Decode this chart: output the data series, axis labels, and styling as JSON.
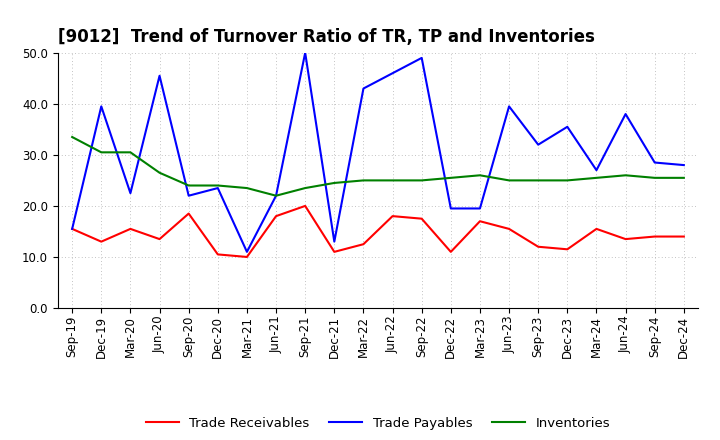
{
  "title": "[9012]  Trend of Turnover Ratio of TR, TP and Inventories",
  "ylim": [
    0.0,
    50.0
  ],
  "yticks": [
    0.0,
    10.0,
    20.0,
    30.0,
    40.0,
    50.0
  ],
  "labels": [
    "Sep-19",
    "Dec-19",
    "Mar-20",
    "Jun-20",
    "Sep-20",
    "Dec-20",
    "Mar-21",
    "Jun-21",
    "Sep-21",
    "Dec-21",
    "Mar-22",
    "Jun-22",
    "Sep-22",
    "Dec-22",
    "Mar-23",
    "Jun-23",
    "Sep-23",
    "Dec-23",
    "Mar-24",
    "Jun-24",
    "Sep-24",
    "Dec-24"
  ],
  "trade_receivables": [
    15.5,
    13.0,
    15.5,
    13.5,
    18.5,
    10.5,
    10.0,
    18.0,
    20.0,
    11.0,
    12.5,
    18.0,
    17.5,
    11.0,
    17.0,
    15.5,
    12.0,
    11.5,
    15.5,
    13.5,
    14.0,
    14.0
  ],
  "trade_payables": [
    15.5,
    39.5,
    22.5,
    45.5,
    22.0,
    23.5,
    11.0,
    22.0,
    50.0,
    13.0,
    43.0,
    46.0,
    49.0,
    19.5,
    19.5,
    39.5,
    32.0,
    35.5,
    27.0,
    38.0,
    28.5,
    28.0
  ],
  "inventories": [
    33.5,
    30.5,
    30.5,
    26.5,
    24.0,
    24.0,
    23.5,
    22.0,
    23.5,
    24.5,
    25.0,
    25.0,
    25.0,
    25.5,
    26.0,
    25.0,
    25.0,
    25.0,
    25.5,
    26.0,
    25.5,
    25.5
  ],
  "tr_color": "#ff0000",
  "tp_color": "#0000ff",
  "inv_color": "#008000",
  "tr_label": "Trade Receivables",
  "tp_label": "Trade Payables",
  "inv_label": "Inventories",
  "background_color": "#ffffff",
  "grid_color": "#b0b0b0",
  "title_fontsize": 12,
  "legend_fontsize": 9.5,
  "tick_fontsize": 8.5
}
